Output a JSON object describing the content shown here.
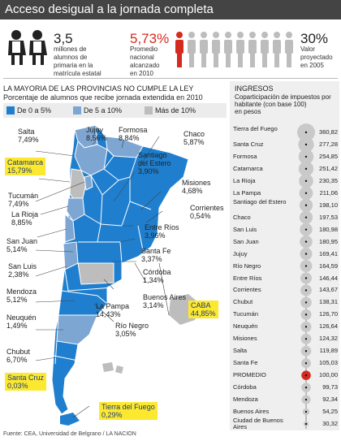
{
  "title": "Acceso desigual a la jornada completa",
  "stats": {
    "s1_value": "3,5",
    "s1_text": [
      "millones de",
      "alumnos de",
      "primaria en la",
      "matrícula estatal"
    ],
    "s2_value": "5,73%",
    "s2_text": [
      "Promedio",
      "nacional",
      "alcanzado",
      "en 2010"
    ],
    "s3_value": "30%",
    "s3_text": [
      "Valor",
      "proyectado",
      "en 2005"
    ]
  },
  "left": {
    "heading": "LA MAYORIA DE LAS PROVINCIAS NO CUMPLE LA LEY",
    "subheading": "Porcentaje de alumnos que recibe jornada extendida en 2010",
    "legend": [
      {
        "label": "De 0 a 5%",
        "color": "#1f7fce"
      },
      {
        "label": "De 5 a 10%",
        "color": "#7ea6d2"
      },
      {
        "label": "Más de 10%",
        "color": "#bdbdbd"
      }
    ],
    "provinces": [
      {
        "name": "Salta",
        "value": "7,49%"
      },
      {
        "name": "Jujuy",
        "value": "8,56%"
      },
      {
        "name": "Formosa",
        "value": "8,84%"
      },
      {
        "name": "Chaco",
        "value": "5,87%"
      },
      {
        "name": "Catamarca",
        "value": "15,79%"
      },
      {
        "name": "Santiago del Estero",
        "value": "3,90%"
      },
      {
        "name": "Misiones",
        "value": "4,68%"
      },
      {
        "name": "Tucumán",
        "value": "7,49%"
      },
      {
        "name": "Corrientes",
        "value": "0,54%"
      },
      {
        "name": "La Rioja",
        "value": "8,85%"
      },
      {
        "name": "Entre Ríos",
        "value": "3,96%"
      },
      {
        "name": "San Juan",
        "value": "5,14%"
      },
      {
        "name": "Santa Fe",
        "value": "3,37%"
      },
      {
        "name": "San Luis",
        "value": "2,38%"
      },
      {
        "name": "Córdoba",
        "value": "1,34%"
      },
      {
        "name": "Mendoza",
        "value": "5,12%"
      },
      {
        "name": "Buenos Aires",
        "value": "3,14%"
      },
      {
        "name": "La Pampa",
        "value": "14,43%"
      },
      {
        "name": "Neuquén",
        "value": "1,49%"
      },
      {
        "name": "CABA",
        "value": "44,85%"
      },
      {
        "name": "Río Negro",
        "value": "3,05%"
      },
      {
        "name": "Chubut",
        "value": "6,70%"
      },
      {
        "name": "Santa Cruz",
        "value": "0,03%"
      },
      {
        "name": "Tierra del Fuego",
        "value": "0,29%"
      }
    ]
  },
  "right": {
    "title": "INGRESOS",
    "subtitle": [
      "Coparticipación de impuestos por",
      "habitante (con base 100)",
      "en pesos"
    ],
    "rows": [
      {
        "label": "Tierra del Fuego",
        "value": 360.82,
        "text": "360,82"
      },
      {
        "label": "Santa Cruz",
        "value": 277.28,
        "text": "277,28"
      },
      {
        "label": "Formosa",
        "value": 254.85,
        "text": "254,85"
      },
      {
        "label": "Catamarca",
        "value": 251.42,
        "text": "251,42"
      },
      {
        "label": "La Rioja",
        "value": 230.35,
        "text": "230,35"
      },
      {
        "label": "La Pampa",
        "value": 211.06,
        "text": "211,06"
      },
      {
        "label": "Santiago del Estero",
        "value": 198.1,
        "text": "198,10"
      },
      {
        "label": "Chaco",
        "value": 197.53,
        "text": "197,53"
      },
      {
        "label": "San Luis",
        "value": 180.98,
        "text": "180,98"
      },
      {
        "label": "San Juan",
        "value": 180.95,
        "text": "180,95"
      },
      {
        "label": "Jujuy",
        "value": 169.41,
        "text": "169,41"
      },
      {
        "label": "Río Negro",
        "value": 164.59,
        "text": "164,59"
      },
      {
        "label": "Entre Ríos",
        "value": 146.44,
        "text": "146,44"
      },
      {
        "label": "Corrientes",
        "value": 143.67,
        "text": "143,67"
      },
      {
        "label": "Chubut",
        "value": 138.31,
        "text": "138,31"
      },
      {
        "label": "Tucumán",
        "value": 126.7,
        "text": "126,70"
      },
      {
        "label": "Neuquén",
        "value": 126.64,
        "text": "126,64"
      },
      {
        "label": "Misiones",
        "value": 124.32,
        "text": "124,32"
      },
      {
        "label": "Salta",
        "value": 119.89,
        "text": "119,89"
      },
      {
        "label": "Santa Fe",
        "value": 105.03,
        "text": "105,03"
      },
      {
        "label": "PROMEDIO",
        "value": 100.0,
        "text": "100,00",
        "highlight": true
      },
      {
        "label": "Córdoba",
        "value": 99.73,
        "text": "99,73"
      },
      {
        "label": "Mendoza",
        "value": 92.34,
        "text": "92,34"
      },
      {
        "label": "Buenos Aires",
        "value": 54.25,
        "text": "54,25"
      },
      {
        "label": "Ciudad de Buenos Aires",
        "value": 30.32,
        "text": "30,32"
      }
    ]
  },
  "source": "Fuente: CEA, Universidad de Belgrano / LA NACION",
  "colors": {
    "dark_blue": "#1f7fce",
    "light_blue": "#7ea6d2",
    "gray": "#bdbdbd",
    "red": "#d52b1e",
    "highlight": "#fde830"
  }
}
